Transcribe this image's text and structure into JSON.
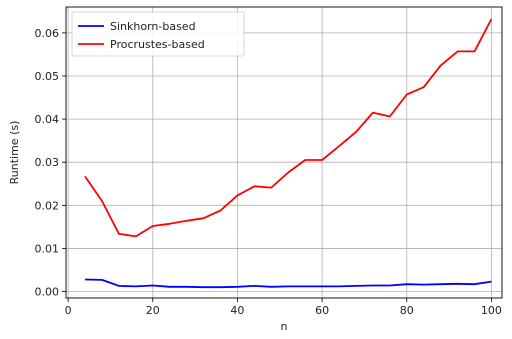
{
  "chart_data": {
    "type": "line",
    "title": "",
    "xlabel": "n",
    "ylabel": "Runtime (s)",
    "xlim": [
      -0.5,
      102.5
    ],
    "ylim": [
      -0.0015,
      0.066
    ],
    "grid": true,
    "legend_position": "top-left",
    "xticks": [
      0,
      20,
      40,
      60,
      80,
      100
    ],
    "xtick_labels": [
      "0",
      "20",
      "40",
      "60",
      "80",
      "100"
    ],
    "yticks": [
      0.0,
      0.01,
      0.02,
      0.03,
      0.04,
      0.05,
      0.06
    ],
    "ytick_labels": [
      "0.00",
      "0.01",
      "0.02",
      "0.03",
      "0.04",
      "0.05",
      "0.06"
    ],
    "x": [
      4,
      8,
      12,
      16,
      20,
      24,
      28,
      32,
      36,
      40,
      44,
      48,
      52,
      56,
      60,
      64,
      68,
      72,
      76,
      80,
      84,
      88,
      92,
      96,
      100
    ],
    "series": [
      {
        "name": "Sinkhorn-based",
        "color": "#0000ff",
        "values": [
          0.0028,
          0.0027,
          0.0013,
          0.0012,
          0.0014,
          0.0011,
          0.0011,
          0.001,
          0.001,
          0.0011,
          0.0013,
          0.0011,
          0.0012,
          0.0012,
          0.0012,
          0.0012,
          0.0013,
          0.0014,
          0.0014,
          0.0017,
          0.0016,
          0.0017,
          0.0018,
          0.0017,
          0.0023
        ]
      },
      {
        "name": "Procrustes-based",
        "color": "#ff0000",
        "values": [
          0.0267,
          0.021,
          0.0134,
          0.0128,
          0.0152,
          0.0157,
          0.0164,
          0.017,
          0.0188,
          0.0223,
          0.0244,
          0.0241,
          0.0276,
          0.0305,
          0.0305,
          0.0337,
          0.037,
          0.0415,
          0.0406,
          0.0457,
          0.0474,
          0.0524,
          0.0557,
          0.0557,
          0.0632
        ]
      }
    ]
  }
}
